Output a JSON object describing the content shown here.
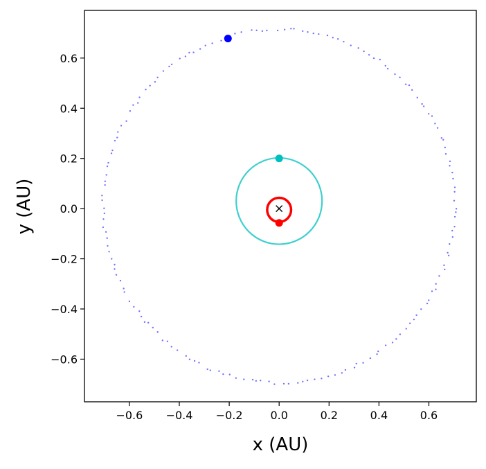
{
  "chart_data": {
    "type": "scatter",
    "title": "",
    "xlabel": "x (AU)",
    "ylabel": "y (AU)",
    "xlim": [
      -0.78,
      0.79
    ],
    "ylim": [
      -0.77,
      0.79
    ],
    "xticks": [
      -0.6,
      -0.4,
      -0.2,
      0.0,
      0.2,
      0.4,
      0.6
    ],
    "xtick_labels": [
      "−0.6",
      "−0.4",
      "−0.2",
      "0.0",
      "0.2",
      "0.4",
      "0.6"
    ],
    "yticks": [
      -0.6,
      -0.4,
      -0.2,
      0.0,
      0.2,
      0.4,
      0.6
    ],
    "ytick_labels": [
      "−0.6",
      "−0.4",
      "−0.2",
      "0.0",
      "0.2",
      "0.4",
      "0.6"
    ],
    "grid": false,
    "legend": "none",
    "series": [
      {
        "color": "#0000ff",
        "orbit": {
          "center": [
            0.0,
            0.01
          ],
          "radius": 0.705,
          "points": 170
        },
        "current_position": [
          -0.205,
          0.678
        ]
      },
      {
        "color": "#00bfbf",
        "orbit": {
          "center": [
            0.0,
            0.03
          ],
          "radius": 0.172,
          "points": 200
        },
        "current_position": [
          0.0,
          0.2
        ]
      },
      {
        "color": "#ff0000",
        "orbit": {
          "center": [
            0.0,
            -0.005
          ],
          "radius": 0.048,
          "points": 200
        },
        "current_position": [
          0.0,
          -0.057
        ]
      }
    ],
    "central_marker": {
      "position": [
        0.0,
        0.0
      ],
      "symbol": "×",
      "color": "#000000"
    }
  }
}
